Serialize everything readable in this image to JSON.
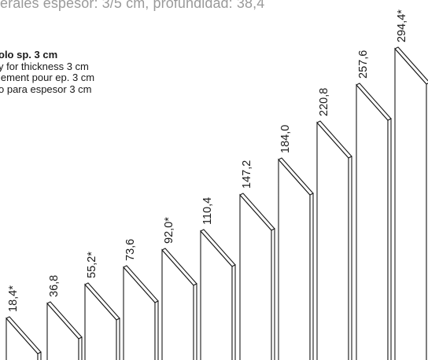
{
  "header": {
    "spec_text": "erales espesor: 3/5 cm, profundidad: 38,4"
  },
  "note": {
    "line_it": "olo sp. 3 cm",
    "line_en": "y for thickness 3 cm",
    "line_fr": "lement pour ep. 3 cm",
    "line_es": "o para espesor 3 cm"
  },
  "panels": [
    {
      "height": "18,4*"
    },
    {
      "height": "36,8"
    },
    {
      "height": "55,2*"
    },
    {
      "height": "73,6"
    },
    {
      "height": "92,0*"
    },
    {
      "height": "110,4"
    },
    {
      "height": "147,2"
    },
    {
      "height": "184,0"
    },
    {
      "height": "220,8"
    },
    {
      "height": "257,6"
    },
    {
      "height": "294,4*"
    }
  ],
  "colors": {
    "line": "#1a1a1a",
    "header_text": "#9a9a9a"
  }
}
